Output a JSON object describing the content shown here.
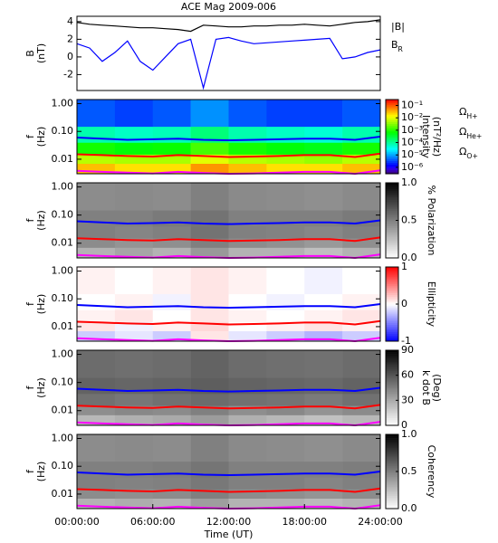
{
  "chart_data": [
    {
      "type": "line",
      "title": "ACE Mag 2009-006",
      "ylabel": [
        "B",
        "(nT)"
      ],
      "x": [
        0,
        1,
        2,
        3,
        4,
        5,
        6,
        7,
        8,
        9,
        10,
        11,
        12,
        13,
        14,
        15,
        16,
        17,
        18,
        19,
        20,
        21,
        22,
        23,
        24
      ],
      "xlim": [
        0,
        24
      ],
      "ylim": [
        -3.8,
        4.6
      ],
      "yticks": [
        -2,
        0,
        2,
        4
      ],
      "series": [
        {
          "name": "|B|",
          "color": "#000000",
          "values": [
            3.9,
            3.7,
            3.6,
            3.5,
            3.4,
            3.3,
            3.3,
            3.2,
            3.1,
            2.9,
            3.6,
            3.5,
            3.4,
            3.4,
            3.5,
            3.5,
            3.6,
            3.6,
            3.7,
            3.6,
            3.5,
            3.7,
            3.9,
            4.0,
            4.2
          ]
        },
        {
          "name": "BR",
          "color": "#0000ff",
          "values": [
            1.5,
            1.0,
            -0.5,
            0.5,
            1.8,
            -0.5,
            -1.5,
            0.0,
            1.5,
            2.0,
            -3.5,
            2.0,
            2.2,
            1.8,
            1.5,
            1.6,
            1.7,
            1.8,
            1.9,
            2.0,
            2.1,
            -0.2,
            0.0,
            0.5,
            0.8
          ]
        }
      ]
    },
    {
      "type": "heatmap",
      "ylabel": [
        "f",
        "(Hz)"
      ],
      "zlabel": [
        "Intensity",
        "(nT²/Hz)"
      ],
      "colormap": "rainbow",
      "zlog": true,
      "xlim": [
        0,
        24
      ],
      "ylim": [
        0.003,
        1.4
      ],
      "ylog": true,
      "yticks": [
        {
          "value": 0.01,
          "label": "0.01"
        },
        {
          "value": 0.1,
          "label": "0.10"
        },
        {
          "value": 1,
          "label": "1.00"
        }
      ],
      "zlim": [
        3e-07,
        0.3
      ],
      "zticks": [
        {
          "value": 0.1,
          "label": "10⁻¹"
        },
        {
          "value": 0.01,
          "label": "10⁻²"
        },
        {
          "value": 0.001,
          "label": "10⁻³"
        },
        {
          "value": 0.0001,
          "label": "10⁻⁴"
        },
        {
          "value": 1e-05,
          "label": "10⁻⁵"
        },
        {
          "value": 1e-06,
          "label": "10⁻⁶"
        }
      ],
      "tbins": [
        0,
        3,
        6,
        9,
        12,
        15,
        18,
        21,
        24
      ],
      "fbins": [
        0.003,
        0.007,
        0.015,
        0.04,
        0.15,
        1.4
      ],
      "z": [
        [
          0.03,
          0.02,
          0.02,
          0.05,
          0.03,
          0.02,
          0.02,
          0.03
        ],
        [
          0.006,
          0.005,
          0.005,
          0.01,
          0.006,
          0.005,
          0.004,
          0.006
        ],
        [
          0.0008,
          0.0006,
          0.0007,
          0.0015,
          0.0008,
          0.0006,
          0.0005,
          0.0008
        ],
        [
          8e-05,
          6e-05,
          7e-05,
          0.00015,
          8e-05,
          6e-05,
          5e-05,
          8e-05
        ],
        [
          4e-06,
          3e-06,
          4e-06,
          8e-06,
          4e-06,
          3e-06,
          3e-06,
          4e-06
        ]
      ],
      "legend": true,
      "x": [
        0,
        2,
        4,
        6,
        8,
        10,
        12,
        14,
        16,
        18,
        20,
        22,
        24
      ],
      "series": [
        {
          "name": "ΩH+",
          "color": "#0000ff",
          "values": [
            0.06,
            0.055,
            0.05,
            0.052,
            0.055,
            0.05,
            0.048,
            0.05,
            0.052,
            0.055,
            0.055,
            0.05,
            0.065
          ]
        },
        {
          "name": "ΩHe+",
          "color": "#ff0000",
          "values": [
            0.015,
            0.014,
            0.013,
            0.0125,
            0.014,
            0.013,
            0.012,
            0.0125,
            0.013,
            0.014,
            0.014,
            0.012,
            0.016
          ]
        },
        {
          "name": "ΩO+",
          "color": "#ff00ff",
          "values": [
            0.0038,
            0.0035,
            0.0033,
            0.0031,
            0.0035,
            0.0032,
            0.003,
            0.0031,
            0.0033,
            0.0035,
            0.0035,
            0.003,
            0.004
          ]
        }
      ]
    },
    {
      "type": "heatmap",
      "ylabel": [
        "f",
        "(Hz)"
      ],
      "zlabel": [
        "% Polarization"
      ],
      "colormap": "gray",
      "xlim": [
        0,
        24
      ],
      "ylim": [
        0.003,
        1.4
      ],
      "ylog": true,
      "yticks": [
        {
          "value": 0.01,
          "label": "0.01"
        },
        {
          "value": 0.1,
          "label": "0.10"
        },
        {
          "value": 1,
          "label": "1.00"
        }
      ],
      "zlim": [
        0,
        1
      ],
      "zticks": [
        {
          "value": 0,
          "label": "0.0"
        },
        0.5,
        {
          "value": 1,
          "label": "1.0"
        }
      ],
      "tbins": [
        0,
        3,
        6,
        9,
        12,
        15,
        18,
        21,
        24
      ],
      "fbins": [
        0.003,
        0.007,
        0.015,
        0.04,
        0.15,
        1.4
      ],
      "z": [
        [
          0.3,
          0.35,
          0.3,
          0.4,
          0.3,
          0.3,
          0.25,
          0.3
        ],
        [
          0.45,
          0.42,
          0.44,
          0.5,
          0.45,
          0.43,
          0.4,
          0.44
        ],
        [
          0.5,
          0.48,
          0.5,
          0.55,
          0.5,
          0.49,
          0.47,
          0.5
        ],
        [
          0.5,
          0.5,
          0.52,
          0.55,
          0.5,
          0.5,
          0.5,
          0.52
        ],
        [
          0.45,
          0.46,
          0.45,
          0.5,
          0.46,
          0.45,
          0.44,
          0.46
        ]
      ],
      "x": [
        0,
        2,
        4,
        6,
        8,
        10,
        12,
        14,
        16,
        18,
        20,
        22,
        24
      ],
      "series": [
        {
          "name": "ΩH+",
          "color": "#0000ff",
          "values": [
            0.06,
            0.055,
            0.05,
            0.052,
            0.055,
            0.05,
            0.048,
            0.05,
            0.052,
            0.055,
            0.055,
            0.05,
            0.065
          ]
        },
        {
          "name": "ΩHe+",
          "color": "#ff0000",
          "values": [
            0.015,
            0.014,
            0.013,
            0.0125,
            0.014,
            0.013,
            0.012,
            0.0125,
            0.013,
            0.014,
            0.014,
            0.012,
            0.016
          ]
        },
        {
          "name": "ΩO+",
          "color": "#ff00ff",
          "values": [
            0.0038,
            0.0035,
            0.0033,
            0.0031,
            0.0035,
            0.0032,
            0.003,
            0.0031,
            0.0033,
            0.0035,
            0.0035,
            0.003,
            0.004
          ]
        }
      ]
    },
    {
      "type": "heatmap",
      "ylabel": [
        "f",
        "(Hz)"
      ],
      "zlabel": [
        "Ellipticity"
      ],
      "colormap": "bwr",
      "xlim": [
        0,
        24
      ],
      "ylim": [
        0.003,
        1.4
      ],
      "ylog": true,
      "yticks": [
        {
          "value": 0.01,
          "label": "0.01"
        },
        {
          "value": 0.1,
          "label": "0.10"
        },
        {
          "value": 1,
          "label": "1.00"
        }
      ],
      "zlim": [
        -1,
        1
      ],
      "zticks": [
        -1,
        0,
        1
      ],
      "tbins": [
        0,
        3,
        6,
        9,
        12,
        15,
        18,
        21,
        24
      ],
      "fbins": [
        0.003,
        0.007,
        0.015,
        0.04,
        0.15,
        1.4
      ],
      "z": [
        [
          -0.2,
          -0.1,
          -0.2,
          0.1,
          -0.1,
          -0.2,
          -0.3,
          -0.2
        ],
        [
          0.1,
          -0.05,
          0.05,
          0.15,
          0,
          0.05,
          0.1,
          0.05
        ],
        [
          0.05,
          0.1,
          0,
          0.1,
          0.05,
          0,
          0.05,
          0.1
        ],
        [
          0,
          0.05,
          -0.05,
          0.1,
          0,
          -0.05,
          0,
          0.05
        ],
        [
          0.05,
          0,
          0.05,
          0.1,
          0.05,
          0,
          -0.05,
          0
        ]
      ],
      "x": [
        0,
        2,
        4,
        6,
        8,
        10,
        12,
        14,
        16,
        18,
        20,
        22,
        24
      ],
      "series": [
        {
          "name": "ΩH+",
          "color": "#0000ff",
          "values": [
            0.06,
            0.055,
            0.05,
            0.052,
            0.055,
            0.05,
            0.048,
            0.05,
            0.052,
            0.055,
            0.055,
            0.05,
            0.065
          ]
        },
        {
          "name": "ΩHe+",
          "color": "#ff0000",
          "values": [
            0.015,
            0.014,
            0.013,
            0.0125,
            0.014,
            0.013,
            0.012,
            0.0125,
            0.013,
            0.014,
            0.014,
            0.012,
            0.016
          ]
        },
        {
          "name": "ΩO+",
          "color": "#ff00ff",
          "values": [
            0.0038,
            0.0035,
            0.0033,
            0.0031,
            0.0035,
            0.0032,
            0.003,
            0.0031,
            0.0033,
            0.0035,
            0.0035,
            0.003,
            0.004
          ]
        }
      ]
    },
    {
      "type": "heatmap",
      "ylabel": [
        "f",
        "(Hz)"
      ],
      "zlabel": [
        "k dot B",
        "(Deg)"
      ],
      "colormap": "gray",
      "xlim": [
        0,
        24
      ],
      "ylim": [
        0.003,
        1.4
      ],
      "ylog": true,
      "yticks": [
        {
          "value": 0.01,
          "label": "0.01"
        },
        {
          "value": 0.1,
          "label": "0.10"
        },
        {
          "value": 1,
          "label": "1.00"
        }
      ],
      "zlim": [
        0,
        90
      ],
      "zticks": [
        0,
        30,
        60,
        90
      ],
      "tbins": [
        0,
        3,
        6,
        9,
        12,
        15,
        18,
        21,
        24
      ],
      "fbins": [
        0.003,
        0.007,
        0.015,
        0.04,
        0.15,
        1.4
      ],
      "z": [
        [
          25,
          28,
          30,
          35,
          28,
          25,
          22,
          25
        ],
        [
          40,
          42,
          41,
          45,
          40,
          42,
          38,
          41
        ],
        [
          50,
          48,
          50,
          52,
          50,
          49,
          47,
          50
        ],
        [
          55,
          54,
          55,
          57,
          55,
          54,
          53,
          55
        ],
        [
          52,
          51,
          52,
          55,
          52,
          51,
          50,
          52
        ]
      ],
      "x": [
        0,
        2,
        4,
        6,
        8,
        10,
        12,
        14,
        16,
        18,
        20,
        22,
        24
      ],
      "series": [
        {
          "name": "ΩH+",
          "color": "#0000ff",
          "values": [
            0.06,
            0.055,
            0.05,
            0.052,
            0.055,
            0.05,
            0.048,
            0.05,
            0.052,
            0.055,
            0.055,
            0.05,
            0.065
          ]
        },
        {
          "name": "ΩHe+",
          "color": "#ff0000",
          "values": [
            0.015,
            0.014,
            0.013,
            0.0125,
            0.014,
            0.013,
            0.012,
            0.0125,
            0.013,
            0.014,
            0.014,
            0.012,
            0.016
          ]
        },
        {
          "name": "ΩO+",
          "color": "#ff00ff",
          "values": [
            0.0038,
            0.0035,
            0.0033,
            0.0031,
            0.0035,
            0.0032,
            0.003,
            0.0031,
            0.0033,
            0.0035,
            0.0035,
            0.003,
            0.004
          ]
        }
      ]
    },
    {
      "type": "heatmap",
      "ylabel": [
        "f",
        "(Hz)"
      ],
      "zlabel": [
        "Coherency"
      ],
      "colormap": "gray",
      "xlim": [
        0,
        24
      ],
      "ylim": [
        0.003,
        1.4
      ],
      "ylog": true,
      "yticks": [
        {
          "value": 0.01,
          "label": "0.01"
        },
        {
          "value": 0.1,
          "label": "0.10"
        },
        {
          "value": 1,
          "label": "1.00"
        }
      ],
      "zlim": [
        0,
        1
      ],
      "zticks": [
        {
          "value": 0,
          "label": "0.0"
        },
        0.5,
        {
          "value": 1,
          "label": "1.0"
        }
      ],
      "tbins": [
        0,
        3,
        6,
        9,
        12,
        15,
        18,
        21,
        24
      ],
      "fbins": [
        0.003,
        0.007,
        0.015,
        0.04,
        0.15,
        1.4
      ],
      "z": [
        [
          0.3,
          0.32,
          0.3,
          0.38,
          0.3,
          0.3,
          0.27,
          0.3
        ],
        [
          0.45,
          0.44,
          0.45,
          0.5,
          0.45,
          0.44,
          0.42,
          0.45
        ],
        [
          0.5,
          0.49,
          0.5,
          0.53,
          0.5,
          0.5,
          0.48,
          0.5
        ],
        [
          0.5,
          0.5,
          0.51,
          0.54,
          0.5,
          0.5,
          0.5,
          0.51
        ],
        [
          0.45,
          0.46,
          0.45,
          0.5,
          0.46,
          0.45,
          0.44,
          0.46
        ]
      ],
      "x": [
        0,
        2,
        4,
        6,
        8,
        10,
        12,
        14,
        16,
        18,
        20,
        22,
        24
      ],
      "series": [
        {
          "name": "ΩH+",
          "color": "#0000ff",
          "values": [
            0.06,
            0.055,
            0.05,
            0.052,
            0.055,
            0.05,
            0.048,
            0.05,
            0.052,
            0.055,
            0.055,
            0.05,
            0.065
          ]
        },
        {
          "name": "ΩHe+",
          "color": "#ff0000",
          "values": [
            0.015,
            0.014,
            0.013,
            0.0125,
            0.014,
            0.013,
            0.012,
            0.0125,
            0.013,
            0.014,
            0.014,
            0.012,
            0.016
          ]
        },
        {
          "name": "ΩO+",
          "color": "#ff00ff",
          "values": [
            0.0038,
            0.0035,
            0.0033,
            0.0031,
            0.0035,
            0.0032,
            0.003,
            0.0031,
            0.0033,
            0.0035,
            0.0035,
            0.003,
            0.004
          ]
        }
      ],
      "xticks": [
        {
          "value": 0,
          "label": "00:00:00"
        },
        {
          "value": 6,
          "label": "06:00:00"
        },
        {
          "value": 12,
          "label": "12:00:00"
        },
        {
          "value": 18,
          "label": "18:00:00"
        },
        {
          "value": 24,
          "label": "24:00:00"
        }
      ],
      "xlabel": "Time (UT)"
    }
  ]
}
